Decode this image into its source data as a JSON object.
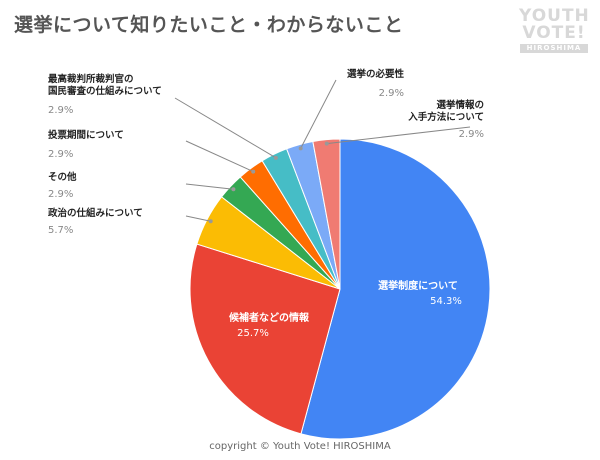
{
  "title": "選挙について知りたいこと・わからないこと",
  "logo": {
    "line1": "YOUTH",
    "line2": "VOTE!",
    "line3": "HIROSHIMA"
  },
  "copyright": "copyright © Youth Vote! HIROSHIMA",
  "chart_data": {
    "type": "pie",
    "title": "選挙について知りたいこと・わからないこと",
    "slices": [
      {
        "label": "選挙制度について",
        "value": 54.3,
        "value_label": "54.3%",
        "color": "#4285f4"
      },
      {
        "label": "候補者などの情報",
        "value": 25.7,
        "value_label": "25.7%",
        "color": "#ea4335"
      },
      {
        "label": "政治の仕組みについて",
        "value": 5.7,
        "value_label": "5.7%",
        "color": "#fbbc04"
      },
      {
        "label": "その他",
        "value": 2.9,
        "value_label": "2.9%",
        "color": "#34a853"
      },
      {
        "label": "投票期間について",
        "value": 2.9,
        "value_label": "2.9%",
        "color": "#ff6d01"
      },
      {
        "label": "最高裁判所裁判官の国民審査の仕組みについて",
        "value": 2.9,
        "value_label": "2.9%",
        "color": "#46bdc6"
      },
      {
        "label": "選挙の必要性",
        "value": 2.9,
        "value_label": "2.9%",
        "color": "#7baaf7"
      },
      {
        "label": "選挙情報の入手方法について",
        "value": 2.9,
        "value_label": "2.9%",
        "color": "#f07b72"
      }
    ]
  }
}
